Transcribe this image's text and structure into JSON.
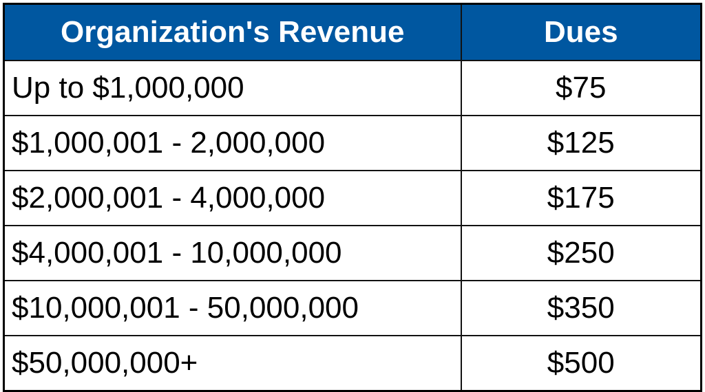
{
  "table": {
    "header_color": "#0057a0",
    "headers": [
      "Organization's Revenue",
      "Dues"
    ],
    "rows": [
      {
        "revenue": "Up to $1,000,000",
        "dues": "$75"
      },
      {
        "revenue": "$1,000,001 - 2,000,000",
        "dues": "$125"
      },
      {
        "revenue": "$2,000,001 - 4,000,000",
        "dues": "$175"
      },
      {
        "revenue": "$4,000,001 - 10,000,000",
        "dues": "$250"
      },
      {
        "revenue": "$10,000,001 - 50,000,000",
        "dues": "$350"
      },
      {
        "revenue": "$50,000,000+",
        "dues": "$500"
      }
    ]
  }
}
